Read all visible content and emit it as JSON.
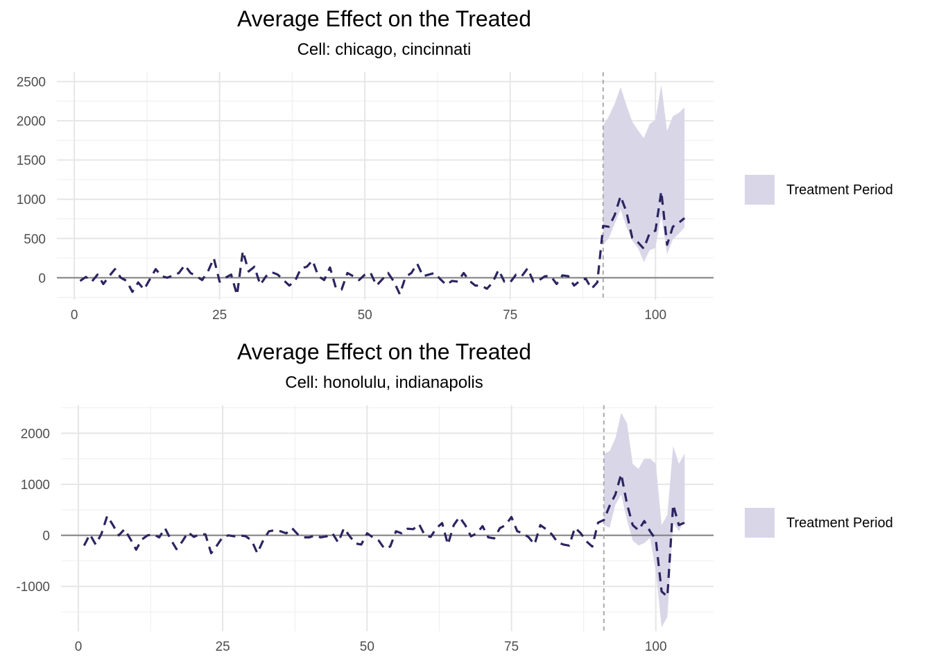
{
  "colors": {
    "band": "#d9d6e8",
    "line": "#2b2460",
    "zero_line": "#7f7f7f",
    "treatment_vline": "#aaaaaa",
    "grid_major": "#e6e6e6",
    "grid_minor": "#f0f0f0"
  },
  "legend": {
    "label": "Treatment Period"
  },
  "chart_data": [
    {
      "type": "line",
      "title": "Average Effect on the Treated",
      "subtitle": "Cell: chicago, cincinnati",
      "xlabel": "",
      "ylabel": "",
      "xlim": [
        -3,
        110
      ],
      "ylim": [
        -280,
        2620
      ],
      "xticks": [
        0,
        25,
        50,
        75,
        100
      ],
      "yticks": [
        0,
        500,
        1000,
        1500,
        2000,
        2500
      ],
      "treatment_start": 91,
      "grid": true,
      "legend_position": "right",
      "series": [
        {
          "x": [
            1,
            2,
            3,
            4,
            5,
            6,
            7,
            8,
            9,
            10,
            11,
            12,
            13,
            14,
            15,
            16,
            17,
            18,
            19,
            20,
            21,
            22,
            23,
            24,
            25,
            26,
            27,
            28,
            29,
            30,
            31,
            32,
            33,
            34,
            35,
            36,
            37,
            38,
            39,
            40,
            41,
            42,
            43,
            44,
            45,
            46,
            47,
            48,
            49,
            50,
            51,
            52,
            53,
            54,
            55,
            56,
            57,
            58,
            59,
            60,
            61,
            62,
            63,
            64,
            65,
            66,
            67,
            68,
            69,
            70,
            71,
            72,
            73,
            74,
            75,
            76,
            77,
            78,
            79,
            80,
            81,
            82,
            83,
            84,
            85,
            86,
            87,
            88,
            89,
            90,
            91,
            92,
            93,
            94,
            95,
            96,
            97,
            98,
            99,
            100,
            101,
            102,
            103,
            104,
            105
          ],
          "y": [
            -40,
            10,
            -50,
            40,
            -80,
            20,
            110,
            0,
            -40,
            -180,
            -60,
            -150,
            -20,
            110,
            20,
            0,
            30,
            60,
            160,
            60,
            20,
            -30,
            80,
            250,
            -50,
            0,
            40,
            -220,
            340,
            80,
            140,
            -90,
            20,
            70,
            40,
            -30,
            -100,
            -40,
            120,
            140,
            220,
            20,
            -30,
            130,
            -130,
            -150,
            60,
            20,
            -30,
            40,
            60,
            -100,
            -20,
            60,
            -50,
            -210,
            10,
            60,
            180,
            20,
            40,
            60,
            -20,
            -90,
            -40,
            -50,
            60,
            -40,
            -100,
            -100,
            -140,
            -60,
            100,
            -50,
            -60,
            40,
            20,
            120,
            -50,
            -30,
            20,
            20,
            -80,
            30,
            20,
            -100,
            -40,
            -10,
            -140,
            -60,
            660,
            650,
            800,
            1040,
            840,
            510,
            450,
            370,
            570,
            600,
            1100,
            420,
            650,
            700,
            760
          ]
        }
      ],
      "band": {
        "x": [
          91,
          92,
          93,
          94,
          95,
          96,
          97,
          98,
          99,
          100,
          101,
          102,
          103,
          104,
          105
        ],
        "lower": [
          420,
          510,
          690,
          870,
          650,
          470,
          380,
          200,
          350,
          380,
          800,
          300,
          490,
          560,
          640
        ],
        "upper": [
          1940,
          2060,
          2220,
          2430,
          2200,
          1990,
          1880,
          1780,
          1960,
          2010,
          2460,
          1870,
          2060,
          2100,
          2170
        ]
      }
    },
    {
      "type": "line",
      "title": "Average Effect on the Treated",
      "subtitle": "Cell: honolulu, indianapolis",
      "xlabel": "",
      "ylabel": "",
      "xlim": [
        -3,
        110
      ],
      "ylim": [
        -1880,
        2550
      ],
      "xticks": [
        0,
        25,
        50,
        75,
        100
      ],
      "yticks": [
        -1000,
        0,
        1000,
        2000
      ],
      "treatment_start": 91,
      "grid": true,
      "legend_position": "right",
      "series": [
        {
          "x": [
            1,
            2,
            3,
            4,
            5,
            6,
            7,
            8,
            9,
            10,
            11,
            12,
            13,
            14,
            15,
            16,
            17,
            18,
            19,
            20,
            21,
            22,
            23,
            24,
            25,
            26,
            27,
            28,
            29,
            30,
            31,
            32,
            33,
            34,
            35,
            36,
            37,
            38,
            39,
            40,
            41,
            42,
            43,
            44,
            45,
            46,
            47,
            48,
            49,
            50,
            51,
            52,
            53,
            54,
            55,
            56,
            57,
            58,
            59,
            60,
            61,
            62,
            63,
            64,
            65,
            66,
            67,
            68,
            69,
            70,
            71,
            72,
            73,
            74,
            75,
            76,
            77,
            78,
            79,
            80,
            81,
            82,
            83,
            84,
            85,
            86,
            87,
            88,
            89,
            90,
            91,
            92,
            93,
            94,
            95,
            96,
            97,
            98,
            99,
            100,
            101,
            102,
            103,
            104,
            105
          ],
          "y": [
            -200,
            20,
            -180,
            30,
            380,
            200,
            0,
            120,
            -70,
            -280,
            -80,
            0,
            20,
            -40,
            140,
            -80,
            -270,
            -120,
            60,
            -30,
            20,
            20,
            -350,
            -200,
            -30,
            0,
            -20,
            0,
            -20,
            -100,
            -350,
            -100,
            80,
            100,
            80,
            40,
            140,
            20,
            -40,
            -40,
            0,
            -40,
            -20,
            40,
            -140,
            140,
            -20,
            -160,
            -180,
            40,
            -40,
            -100,
            -260,
            -220,
            80,
            40,
            130,
            120,
            220,
            0,
            -30,
            140,
            240,
            -180,
            200,
            360,
            200,
            -20,
            40,
            180,
            -40,
            -60,
            140,
            200,
            360,
            80,
            40,
            -40,
            -180,
            200,
            120,
            20,
            -140,
            -180,
            -200,
            150,
            40,
            -120,
            -220,
            250,
            300,
            580,
            800,
            1200,
            620,
            200,
            100,
            280,
            80,
            -80,
            -1100,
            -1200,
            600,
            200,
            250
          ]
        }
      ],
      "band": {
        "x": [
          91,
          92,
          93,
          94,
          95,
          96,
          97,
          98,
          99,
          100,
          101,
          102,
          103,
          104,
          105
        ],
        "lower": [
          200,
          150,
          600,
          800,
          300,
          -100,
          -200,
          -150,
          -50,
          -700,
          -1800,
          -1600,
          250,
          80,
          300
        ],
        "upper": [
          1600,
          1650,
          1900,
          2400,
          2200,
          1400,
          1300,
          1500,
          1500,
          1400,
          200,
          400,
          1750,
          1400,
          1600
        ]
      }
    }
  ]
}
